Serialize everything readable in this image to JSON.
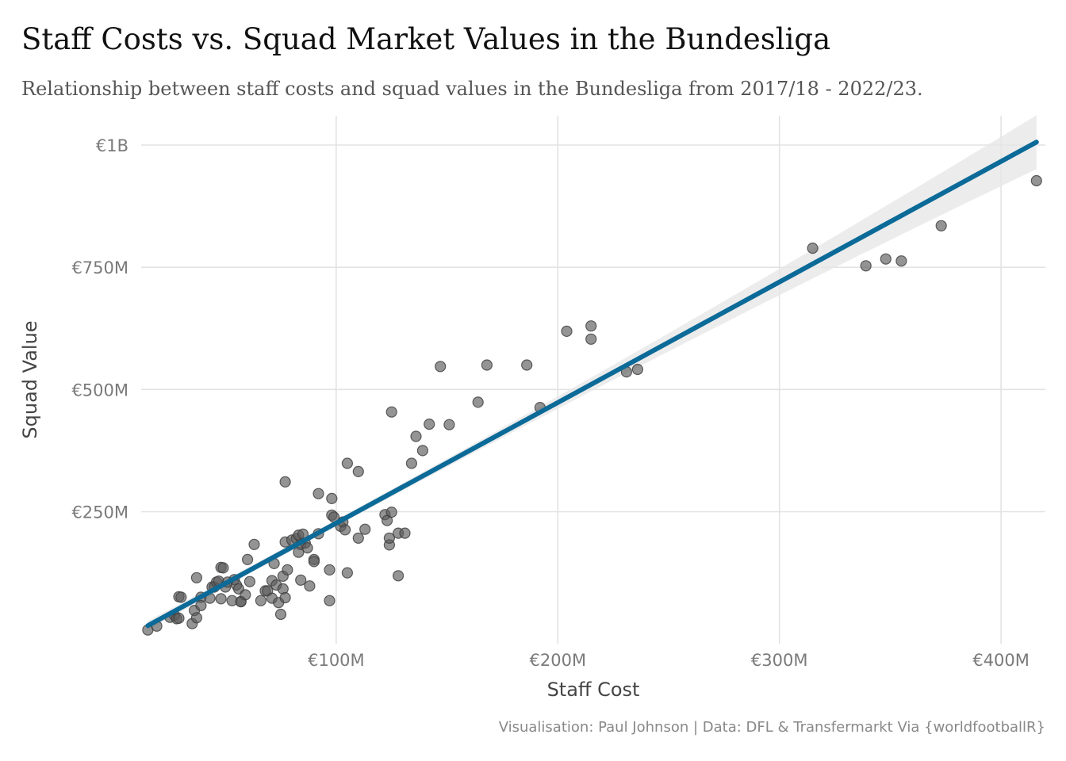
{
  "title": "Staff Costs vs. Squad Market Values in the Bundesliga",
  "subtitle": "Relationship between staff costs and squad values in the Bundesliga from 2017/18 - 2022/23.",
  "caption": "Visualisation: Paul Johnson | Data: DFL & Transfermarkt Via {worldfootballR}",
  "colors": {
    "points": "#5a5a5a",
    "line": "#0b6a98",
    "ribbon": "#e6e6e6",
    "grid": "#e3e3e3"
  },
  "chart_data": {
    "type": "scatter",
    "xlabel": "Staff Cost",
    "ylabel": "Squad Value",
    "xlim": [
      12,
      420
    ],
    "ylim": [
      -20,
      1060
    ],
    "x_ticks": [
      {
        "value": 100,
        "label": "€100M"
      },
      {
        "value": 200,
        "label": "€200M"
      },
      {
        "value": 300,
        "label": "€300M"
      },
      {
        "value": 400,
        "label": "€400M"
      }
    ],
    "y_ticks": [
      {
        "value": 250,
        "label": "€250M"
      },
      {
        "value": 500,
        "label": "€500M"
      },
      {
        "value": 750,
        "label": "€750M"
      },
      {
        "value": 1000,
        "label": "€1B"
      }
    ],
    "grid": true,
    "legend": "none",
    "series": [
      {
        "points": [
          [
            15,
            8
          ],
          [
            19,
            16
          ],
          [
            25,
            34
          ],
          [
            27,
            38
          ],
          [
            28,
            31
          ],
          [
            29,
            32
          ],
          [
            29,
            76
          ],
          [
            30,
            75
          ],
          [
            35,
            21
          ],
          [
            36,
            48
          ],
          [
            37,
            33
          ],
          [
            37,
            115
          ],
          [
            39,
            75
          ],
          [
            39,
            58
          ],
          [
            43,
            73
          ],
          [
            44,
            96
          ],
          [
            45,
            96
          ],
          [
            46,
            106
          ],
          [
            47,
            108
          ],
          [
            48,
            72
          ],
          [
            48,
            136
          ],
          [
            49,
            135
          ],
          [
            50,
            96
          ],
          [
            51,
            106
          ],
          [
            53,
            68
          ],
          [
            54,
            111
          ],
          [
            55,
            100
          ],
          [
            56,
            92
          ],
          [
            57,
            66
          ],
          [
            57,
            66
          ],
          [
            59,
            80
          ],
          [
            60,
            152
          ],
          [
            61,
            107
          ],
          [
            63,
            183
          ],
          [
            66,
            68
          ],
          [
            68,
            88
          ],
          [
            69,
            88
          ],
          [
            71,
            73
          ],
          [
            71,
            109
          ],
          [
            72,
            144
          ],
          [
            73,
            100
          ],
          [
            74,
            64
          ],
          [
            75,
            40
          ],
          [
            76,
            118
          ],
          [
            76,
            92
          ],
          [
            77,
            74
          ],
          [
            77,
            188
          ],
          [
            77,
            311
          ],
          [
            78,
            131
          ],
          [
            80,
            192
          ],
          [
            82,
            195
          ],
          [
            83,
            167
          ],
          [
            83,
            202
          ],
          [
            84,
            110
          ],
          [
            84,
            183
          ],
          [
            85,
            204
          ],
          [
            86,
            186
          ],
          [
            87,
            176
          ],
          [
            88,
            98
          ],
          [
            90,
            152
          ],
          [
            90,
            148
          ],
          [
            92,
            205
          ],
          [
            92,
            287
          ],
          [
            97,
            131
          ],
          [
            97,
            68
          ],
          [
            98,
            277
          ],
          [
            98,
            243
          ],
          [
            99,
            239
          ],
          [
            102,
            220
          ],
          [
            103,
            229
          ],
          [
            104,
            213
          ],
          [
            105,
            349
          ],
          [
            105,
            125
          ],
          [
            110,
            196
          ],
          [
            110,
            332
          ],
          [
            113,
            214
          ],
          [
            122,
            244
          ],
          [
            123,
            232
          ],
          [
            124,
            182
          ],
          [
            124,
            196
          ],
          [
            125,
            249
          ],
          [
            125,
            454
          ],
          [
            128,
            206
          ],
          [
            128,
            119
          ],
          [
            131,
            206
          ],
          [
            134,
            349
          ],
          [
            136,
            404
          ],
          [
            139,
            375
          ],
          [
            142,
            429
          ],
          [
            147,
            547
          ],
          [
            151,
            428
          ],
          [
            164,
            474
          ],
          [
            168,
            550
          ],
          [
            186,
            550
          ],
          [
            192,
            463
          ],
          [
            204,
            619
          ],
          [
            215,
            630
          ],
          [
            215,
            603
          ],
          [
            231,
            536
          ],
          [
            236,
            541
          ],
          [
            315,
            789
          ],
          [
            339,
            753
          ],
          [
            348,
            767
          ],
          [
            355,
            763
          ],
          [
            373,
            835
          ],
          [
            416,
            927
          ]
        ]
      }
    ],
    "fit": {
      "x": [
        15,
        416
      ],
      "y": [
        17,
        1006
      ],
      "ribbon_half_width_at_ends": [
        9,
        55
      ]
    }
  }
}
